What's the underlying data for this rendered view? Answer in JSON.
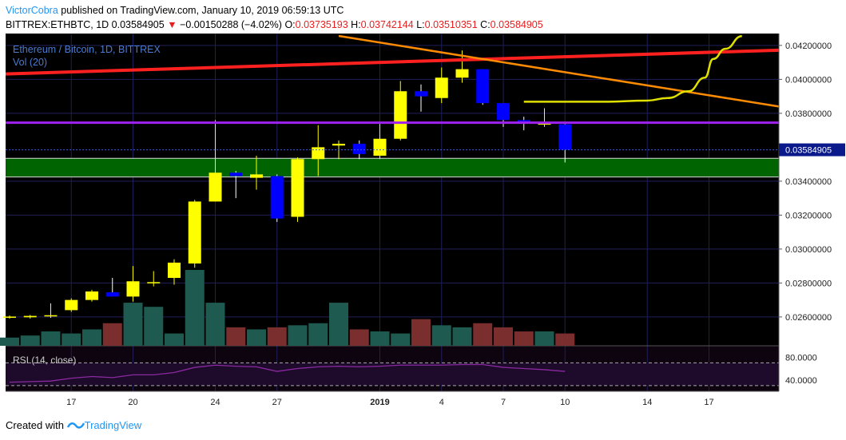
{
  "header": {
    "author": "VictorCobra",
    "published_text": " published on TradingView.com, January 10, 2019 06:59:13 UTC",
    "symbol": "BITTREX:ETHBTC, 1D",
    "last": "0.03584905",
    "change": "−0.00150288 (−4.02%)",
    "o_label": "O:",
    "o_value": "0.03735193",
    "h_label": "H:",
    "h_value": "0.03742144",
    "l_label": "L:",
    "l_value": "0.03510351",
    "c_label": "C:",
    "c_value": "0.03584905"
  },
  "footer": {
    "created_with": "Created with",
    "brand": "TradingView"
  },
  "colors": {
    "background": "#000000",
    "grid": "#1f1f5a",
    "up_candle": "#ffff00",
    "down_candle": "#0000ff",
    "vol_up": "#1e5a50",
    "vol_down": "#7a2e2e",
    "red_line": "#ff2020",
    "orange_line": "#ff8c00",
    "purple_line": "#a020f0",
    "green_zone": "#006400",
    "yellow_curve": "#e0e000",
    "rsi": "#8a2aa0",
    "price_label_bg": "#0a1a8a"
  },
  "chart_data": {
    "type": "candlestick",
    "title": "Ethereum / Bitcoin, 1D, BITTREX",
    "volume_label": "Vol (20)",
    "rsi_label": "RSI (14, close)",
    "last_price_label": "0.03584905",
    "y_ticks": [
      "0.04200000",
      "0.04000000",
      "0.03800000",
      "0.03400000",
      "0.03200000",
      "0.03000000",
      "0.02800000",
      "0.02600000"
    ],
    "ylim": [
      0.0243,
      0.0427
    ],
    "rsi_ticks": [
      "80.0000",
      "40.0000"
    ],
    "rsi_lim": [
      20,
      100
    ],
    "x_tick_labels": [
      "17",
      "20",
      "24",
      "27",
      "2019",
      "4",
      "7",
      "10",
      "14",
      "17"
    ],
    "x_tick_index": [
      3,
      6,
      10,
      13,
      18,
      21,
      24,
      27,
      31,
      34
    ],
    "candles": [
      {
        "o": 0.02595,
        "h": 0.02608,
        "l": 0.0259,
        "c": 0.02602
      },
      {
        "o": 0.02598,
        "h": 0.02612,
        "l": 0.0259,
        "c": 0.02606
      },
      {
        "o": 0.02605,
        "h": 0.0268,
        "l": 0.02595,
        "c": 0.0261
      },
      {
        "o": 0.0264,
        "h": 0.0271,
        "l": 0.0263,
        "c": 0.027
      },
      {
        "o": 0.027,
        "h": 0.0276,
        "l": 0.0269,
        "c": 0.0275
      },
      {
        "o": 0.02745,
        "h": 0.0283,
        "l": 0.0272,
        "c": 0.0272
      },
      {
        "o": 0.0272,
        "h": 0.029,
        "l": 0.0269,
        "c": 0.0281
      },
      {
        "o": 0.028,
        "h": 0.0287,
        "l": 0.0278,
        "c": 0.02805
      },
      {
        "o": 0.0283,
        "h": 0.0294,
        "l": 0.0279,
        "c": 0.0292
      },
      {
        "o": 0.02915,
        "h": 0.0329,
        "l": 0.0289,
        "c": 0.0328
      },
      {
        "o": 0.0328,
        "h": 0.0376,
        "l": 0.0328,
        "c": 0.0345
      },
      {
        "o": 0.0345,
        "h": 0.0346,
        "l": 0.033,
        "c": 0.0343
      },
      {
        "o": 0.0342,
        "h": 0.0355,
        "l": 0.0335,
        "c": 0.0344
      },
      {
        "o": 0.0343,
        "h": 0.0344,
        "l": 0.0316,
        "c": 0.0318
      },
      {
        "o": 0.0319,
        "h": 0.0354,
        "l": 0.0316,
        "c": 0.0353
      },
      {
        "o": 0.0353,
        "h": 0.0373,
        "l": 0.0343,
        "c": 0.036
      },
      {
        "o": 0.0361,
        "h": 0.0364,
        "l": 0.0353,
        "c": 0.0362
      },
      {
        "o": 0.0362,
        "h": 0.0364,
        "l": 0.0353,
        "c": 0.0356
      },
      {
        "o": 0.0355,
        "h": 0.0375,
        "l": 0.0353,
        "c": 0.0365
      },
      {
        "o": 0.0365,
        "h": 0.0399,
        "l": 0.0364,
        "c": 0.0393
      },
      {
        "o": 0.0393,
        "h": 0.0397,
        "l": 0.0381,
        "c": 0.039
      },
      {
        "o": 0.0389,
        "h": 0.0407,
        "l": 0.0386,
        "c": 0.0401
      },
      {
        "o": 0.0401,
        "h": 0.0417,
        "l": 0.0398,
        "c": 0.0406
      },
      {
        "o": 0.0406,
        "h": 0.0406,
        "l": 0.0385,
        "c": 0.0386
      },
      {
        "o": 0.0386,
        "h": 0.0386,
        "l": 0.0372,
        "c": 0.0376
      },
      {
        "o": 0.0376,
        "h": 0.0378,
        "l": 0.037,
        "c": 0.0374
      },
      {
        "o": 0.03735,
        "h": 0.0383,
        "l": 0.0372,
        "c": 0.0374
      },
      {
        "o": 0.03735,
        "h": 0.03742,
        "l": 0.0351,
        "c": 0.03585
      }
    ],
    "volume": [
      4,
      5,
      7,
      6,
      8,
      11,
      21,
      19,
      6,
      37,
      21,
      9,
      8,
      9,
      10,
      11,
      21,
      8,
      7,
      6,
      13,
      10,
      9,
      11,
      9,
      7,
      7,
      6
    ],
    "rsi": [
      36,
      37,
      38,
      43,
      46,
      44,
      49,
      49,
      53,
      62,
      66,
      64,
      63,
      55,
      60,
      63,
      64,
      63,
      64,
      66,
      66,
      66,
      67,
      67,
      62,
      60,
      58,
      55
    ],
    "horizontal_lines": [
      0.03745
    ],
    "zone": [
      0.03425,
      0.03535
    ],
    "red_trendline": [
      [
        0,
        0.04032
      ],
      [
        38,
        0.04172
      ]
    ],
    "orange_trendline": [
      [
        16,
        0.04256
      ],
      [
        38,
        0.0384
      ]
    ],
    "yellow_curve": [
      [
        25,
        0.03868
      ],
      [
        29,
        0.03868
      ],
      [
        31,
        0.03875
      ],
      [
        32,
        0.0389
      ],
      [
        33,
        0.0393
      ],
      [
        33.8,
        0.0401
      ],
      [
        34.2,
        0.0412
      ],
      [
        34.8,
        0.0418
      ],
      [
        35.6,
        0.04255
      ]
    ]
  }
}
